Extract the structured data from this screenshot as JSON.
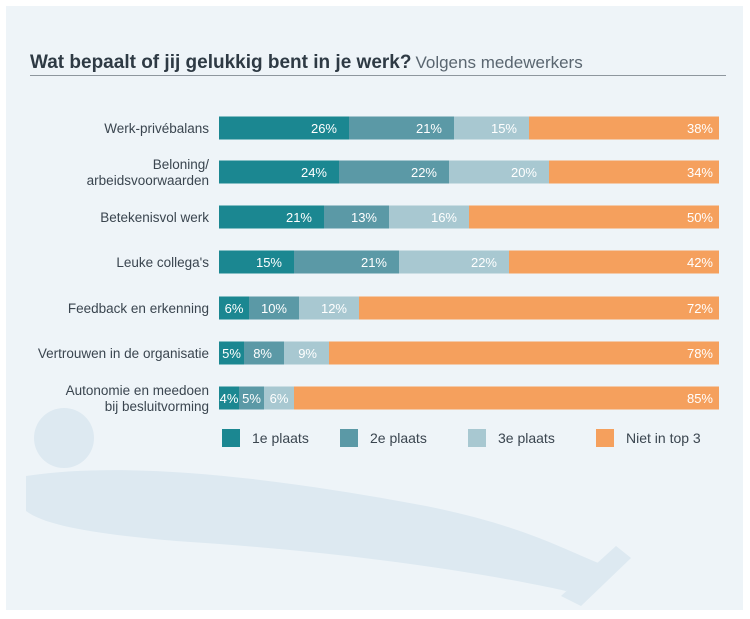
{
  "title": "Wat bepaalt of jij gelukkig bent in je werk?",
  "subtitle": "Volgens medewerkers",
  "colors": {
    "1e plaats": "#1b8791",
    "2e plaats": "#5b99a6",
    "3e plaats": "#a8c8d1",
    "Niet in top 3": "#f5a05d"
  },
  "chart_data": {
    "type": "bar",
    "orientation": "horizontal",
    "stacked": true,
    "categories": [
      [
        "Werk-privébalans"
      ],
      [
        "Beloning/",
        "arbeidsvoorwaarden"
      ],
      [
        "Betekenisvol werk"
      ],
      [
        "Leuke collega's"
      ],
      [
        "Feedback en erkenning"
      ],
      [
        "Vertrouwen in de organisatie"
      ],
      [
        "Autonomie en meedoen",
        "bij besluitvorming"
      ]
    ],
    "series": [
      {
        "name": "1e plaats",
        "values": [
          26,
          24,
          21,
          15,
          6,
          5,
          4
        ]
      },
      {
        "name": "2e plaats",
        "values": [
          21,
          22,
          13,
          21,
          10,
          8,
          5
        ]
      },
      {
        "name": "3e plaats",
        "values": [
          15,
          20,
          16,
          22,
          12,
          9,
          6
        ]
      },
      {
        "name": "Niet in top 3",
        "values": [
          38,
          34,
          50,
          42,
          72,
          78,
          85
        ]
      }
    ],
    "value_suffix": "%",
    "legend": "bottom",
    "grid": false
  }
}
